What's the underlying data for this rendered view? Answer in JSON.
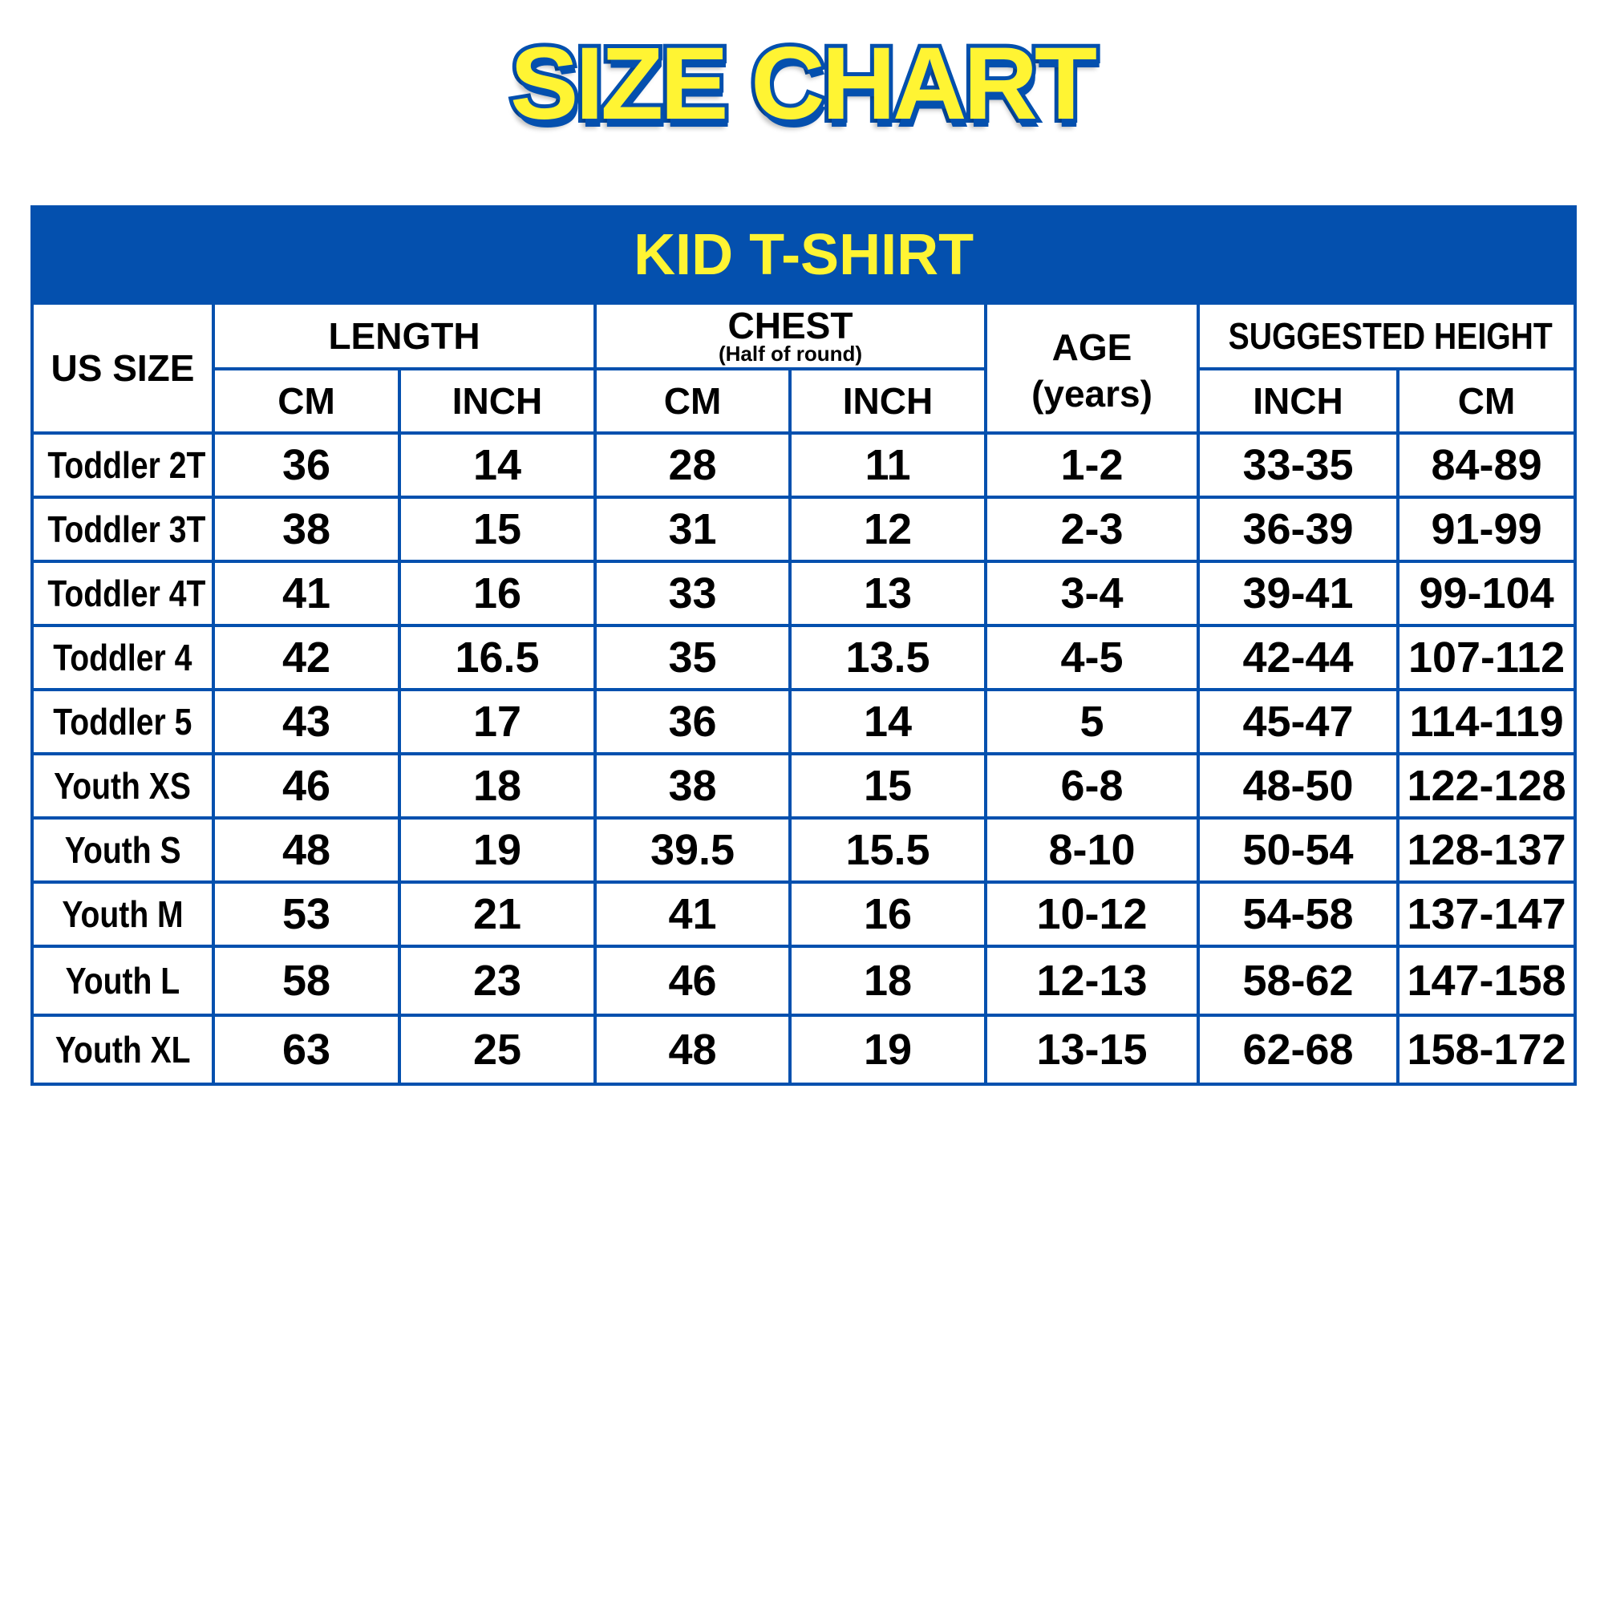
{
  "title": "SIZE CHART",
  "table": {
    "heading": "KID T-SHIRT",
    "headers": {
      "us_size": "US SIZE",
      "length": "LENGTH",
      "chest": "CHEST",
      "chest_note": "(Half of round)",
      "age": "AGE",
      "age_unit": "(years)",
      "height": "SUGGESTED HEIGHT",
      "length_cm": "CM",
      "length_inch": "INCH",
      "chest_cm": "CM",
      "chest_inch": "INCH",
      "height_inch": "INCH",
      "height_cm": "CM"
    },
    "rows": [
      [
        "Toddler 2T",
        "36",
        "14",
        "28",
        "11",
        "1-2",
        "33-35",
        "84-89"
      ],
      [
        "Toddler 3T",
        "38",
        "15",
        "31",
        "12",
        "2-3",
        "36-39",
        "91-99"
      ],
      [
        "Toddler 4T",
        "41",
        "16",
        "33",
        "13",
        "3-4",
        "39-41",
        "99-104"
      ],
      [
        "Toddler 4",
        "42",
        "16.5",
        "35",
        "13.5",
        "4-5",
        "42-44",
        "107-112"
      ],
      [
        "Toddler 5",
        "43",
        "17",
        "36",
        "14",
        "5",
        "45-47",
        "114-119"
      ],
      [
        "Youth XS",
        "46",
        "18",
        "38",
        "15",
        "6-8",
        "48-50",
        "122-128"
      ],
      [
        "Youth S",
        "48",
        "19",
        "39.5",
        "15.5",
        "8-10",
        "50-54",
        "128-137"
      ],
      [
        "Youth M",
        "53",
        "21",
        "41",
        "16",
        "10-12",
        "54-58",
        "137-147"
      ],
      [
        "Youth L",
        "58",
        "23",
        "46",
        "18",
        "12-13",
        "58-62",
        "147-158"
      ],
      [
        "Youth XL",
        "63",
        "25",
        "48",
        "19",
        "13-15",
        "62-68",
        "158-172"
      ]
    ]
  },
  "colors": {
    "brand_blue": "#0450AE",
    "title_yellow": "#FFF433",
    "text": "#000000"
  }
}
